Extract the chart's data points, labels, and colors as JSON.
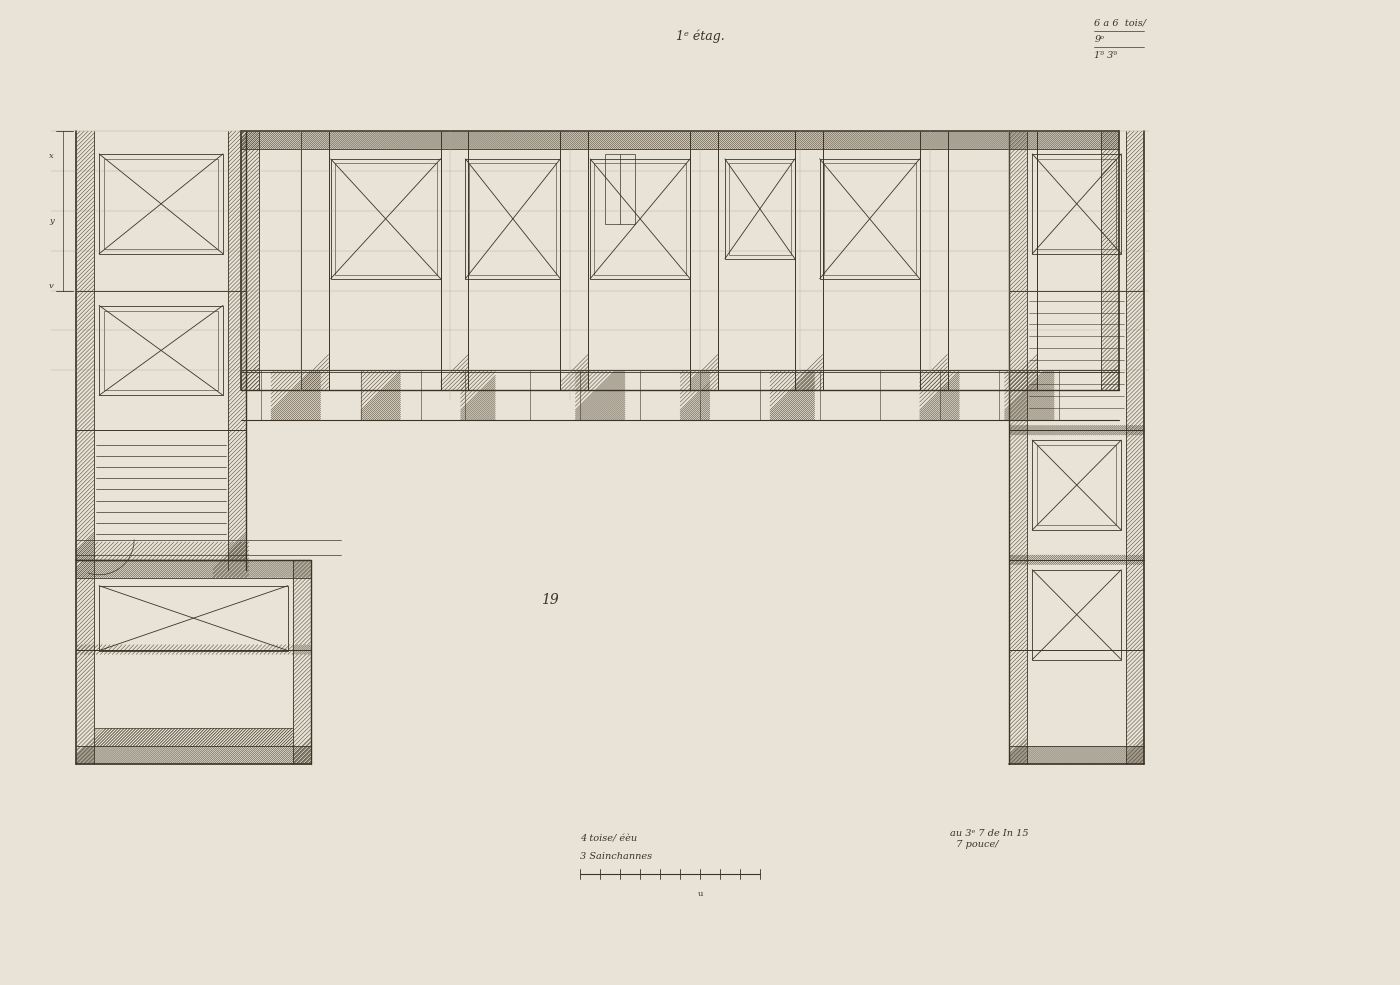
{
  "paper_color": "#e8e3d6",
  "line_color": "#3a3328",
  "hatch_line_color": "#5a5040",
  "title_text": "1ᵉ étag.",
  "top_right_text1": "6 a 6  tois/",
  "top_right_text2": "9ᵒ",
  "top_right_text3": "1ᵒ̅ 3ᵒ̅",
  "bottom_left1": "4 toise/ éèu",
  "bottom_left2": "3 Sainchannes",
  "bottom_right": "au 3ᵉ 7 de In 15\n  7 pouce/",
  "center_label": "19",
  "fig_width": 14.0,
  "fig_height": 9.85,
  "dpi": 100
}
